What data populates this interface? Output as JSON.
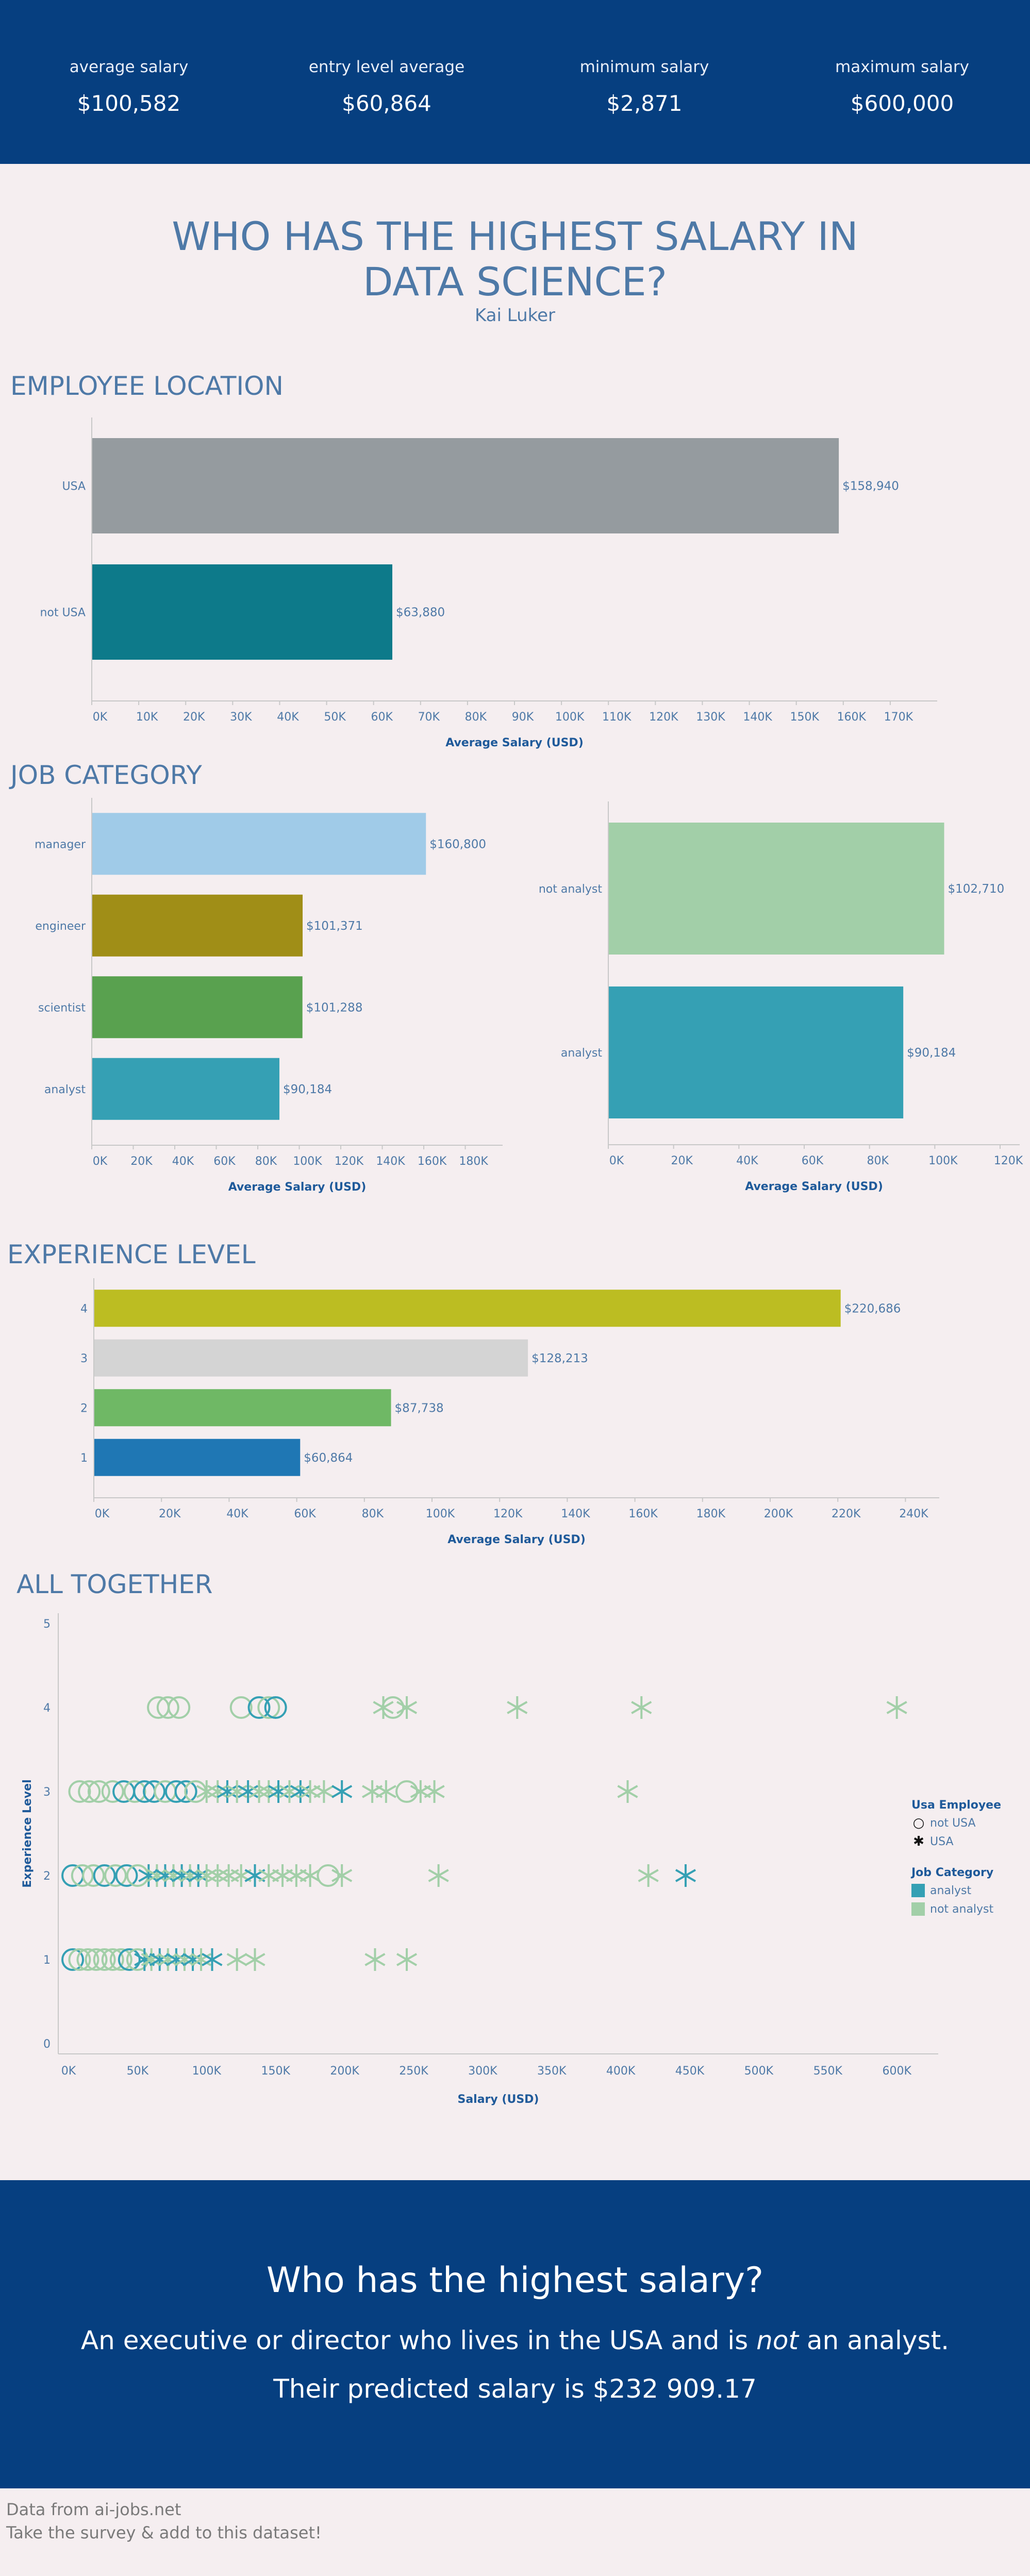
{
  "kpis": [
    {
      "label": "average salary",
      "value": "$100,582"
    },
    {
      "label": "entry level average",
      "value": "$60,864"
    },
    {
      "label": "minimum salary",
      "value": "$2,871"
    },
    {
      "label": "maximum salary",
      "value": "$600,000"
    }
  ],
  "title_line1": "WHO HAS THE HIGHEST SALARY IN",
  "title_line2": "DATA SCIENCE?",
  "author": "Kai Luker",
  "sections": {
    "location": "EMPLOYEE LOCATION",
    "job": "JOB CATEGORY",
    "experience": "EXPERIENCE LEVEL",
    "all": "ALL TOGETHER"
  },
  "colors": {
    "band": "#063f80",
    "background": "#f5eef0",
    "title": "#4e79a7",
    "analyst": "#35a0b4",
    "not_analyst": "#a2cfa8"
  },
  "chart_data": [
    {
      "type": "bar",
      "orientation": "horizontal",
      "categories": [
        "USA",
        "not USA"
      ],
      "values": [
        158940,
        63880
      ],
      "labels": [
        "$158,940",
        "$63,880"
      ],
      "colors": [
        "#959b9f",
        "#0d7a8a"
      ],
      "xlabel": "Average Salary (USD)",
      "xticks": [
        "0K",
        "10K",
        "20K",
        "30K",
        "40K",
        "50K",
        "60K",
        "70K",
        "80K",
        "90K",
        "100K",
        "110K",
        "120K",
        "130K",
        "140K",
        "150K",
        "160K",
        "170K"
      ],
      "xlim": [
        0,
        180000
      ]
    },
    {
      "type": "bar",
      "orientation": "horizontal",
      "categories": [
        "manager",
        "engineer",
        "scientist",
        "analyst"
      ],
      "values": [
        160800,
        101371,
        101288,
        90184
      ],
      "labels": [
        "$160,800",
        "$101,371",
        "$101,288",
        "$90,184"
      ],
      "colors": [
        "#a0cbe8",
        "#a08e17",
        "#59a14f",
        "#35a0b4"
      ],
      "xlabel": "Average Salary (USD)",
      "xticks": [
        "0K",
        "20K",
        "40K",
        "60K",
        "80K",
        "100K",
        "120K",
        "140K",
        "160K",
        "180K"
      ],
      "xlim": [
        0,
        198000
      ]
    },
    {
      "type": "bar",
      "orientation": "horizontal",
      "categories": [
        "not analyst",
        "analyst"
      ],
      "values": [
        102710,
        90184
      ],
      "labels": [
        "$102,710",
        "$90,184"
      ],
      "colors": [
        "#a2cfa8",
        "#35a0b4"
      ],
      "xlabel": "Average Salary (USD)",
      "xticks": [
        "0K",
        "20K",
        "40K",
        "60K",
        "80K",
        "100K",
        "120K"
      ],
      "xlim": [
        0,
        126000
      ]
    },
    {
      "type": "bar",
      "orientation": "horizontal",
      "categories": [
        "4",
        "3",
        "2",
        "1"
      ],
      "values": [
        220686,
        128213,
        87738,
        60864
      ],
      "labels": [
        "$220,686",
        "$128,213",
        "$87,738",
        "$60,864"
      ],
      "colors": [
        "#bcbd22",
        "#d4d4d4",
        "#6fb865",
        "#1f77b4"
      ],
      "xlabel": "Average Salary (USD)",
      "xticks": [
        "0K",
        "20K",
        "40K",
        "60K",
        "80K",
        "100K",
        "120K",
        "140K",
        "160K",
        "180K",
        "200K",
        "220K",
        "240K"
      ],
      "xlim": [
        0,
        250000
      ]
    },
    {
      "type": "scatter",
      "xlabel": "Salary (USD)",
      "ylabel": "Experience Level",
      "xlim": [
        0,
        630000
      ],
      "ylim": [
        0,
        5
      ],
      "xticks": [
        "0K",
        "50K",
        "100K",
        "150K",
        "200K",
        "250K",
        "300K",
        "350K",
        "400K",
        "450K",
        "500K",
        "550K",
        "600K"
      ],
      "yticks": [
        "0",
        "1",
        "2",
        "3",
        "4",
        "5"
      ],
      "legend": {
        "shape_title": "Usa Employee",
        "shapes": [
          {
            "name": "not USA",
            "marker": "circle"
          },
          {
            "name": "USA",
            "marker": "asterisk"
          }
        ],
        "color_title": "Job Category",
        "colors": [
          {
            "name": "analyst",
            "color": "#35a0b4"
          },
          {
            "name": "not analyst",
            "color": "#a2cfa8"
          }
        ]
      },
      "points": [
        {
          "x": 65000,
          "y": 4,
          "shape": "circle",
          "cat": "not analyst"
        },
        {
          "x": 72000,
          "y": 4,
          "shape": "circle",
          "cat": "not analyst"
        },
        {
          "x": 80000,
          "y": 4,
          "shape": "circle",
          "cat": "not analyst"
        },
        {
          "x": 125000,
          "y": 4,
          "shape": "circle",
          "cat": "not analyst"
        },
        {
          "x": 138000,
          "y": 4,
          "shape": "circle",
          "cat": "analyst"
        },
        {
          "x": 145000,
          "y": 4,
          "shape": "circle",
          "cat": "not analyst"
        },
        {
          "x": 150000,
          "y": 4,
          "shape": "circle",
          "cat": "analyst"
        },
        {
          "x": 228000,
          "y": 4,
          "shape": "asterisk",
          "cat": "not analyst"
        },
        {
          "x": 235000,
          "y": 4,
          "shape": "circle",
          "cat": "not analyst"
        },
        {
          "x": 245000,
          "y": 4,
          "shape": "asterisk",
          "cat": "not analyst"
        },
        {
          "x": 325000,
          "y": 4,
          "shape": "asterisk",
          "cat": "not analyst"
        },
        {
          "x": 415000,
          "y": 4,
          "shape": "asterisk",
          "cat": "not analyst"
        },
        {
          "x": 600000,
          "y": 4,
          "shape": "asterisk",
          "cat": "not analyst"
        },
        {
          "x": 8000,
          "y": 3,
          "shape": "circle",
          "cat": "not analyst"
        },
        {
          "x": 15000,
          "y": 3,
          "shape": "circle",
          "cat": "not analyst"
        },
        {
          "x": 22000,
          "y": 3,
          "shape": "circle",
          "cat": "not analyst"
        },
        {
          "x": 32000,
          "y": 3,
          "shape": "circle",
          "cat": "not analyst"
        },
        {
          "x": 40000,
          "y": 3,
          "shape": "circle",
          "cat": "analyst"
        },
        {
          "x": 48000,
          "y": 3,
          "shape": "circle",
          "cat": "not analyst"
        },
        {
          "x": 55000,
          "y": 3,
          "shape": "circle",
          "cat": "analyst"
        },
        {
          "x": 62000,
          "y": 3,
          "shape": "circle",
          "cat": "analyst"
        },
        {
          "x": 70000,
          "y": 3,
          "shape": "circle",
          "cat": "not analyst"
        },
        {
          "x": 78000,
          "y": 3,
          "shape": "circle",
          "cat": "analyst"
        },
        {
          "x": 85000,
          "y": 3,
          "shape": "circle",
          "cat": "analyst"
        },
        {
          "x": 92000,
          "y": 3,
          "shape": "circle",
          "cat": "not analyst"
        },
        {
          "x": 100000,
          "y": 3,
          "shape": "asterisk",
          "cat": "not analyst"
        },
        {
          "x": 108000,
          "y": 3,
          "shape": "asterisk",
          "cat": "not analyst"
        },
        {
          "x": 115000,
          "y": 3,
          "shape": "asterisk",
          "cat": "analyst"
        },
        {
          "x": 122000,
          "y": 3,
          "shape": "asterisk",
          "cat": "not analyst"
        },
        {
          "x": 130000,
          "y": 3,
          "shape": "asterisk",
          "cat": "analyst"
        },
        {
          "x": 138000,
          "y": 3,
          "shape": "asterisk",
          "cat": "not analyst"
        },
        {
          "x": 145000,
          "y": 3,
          "shape": "asterisk",
          "cat": "not analyst"
        },
        {
          "x": 152000,
          "y": 3,
          "shape": "asterisk",
          "cat": "analyst"
        },
        {
          "x": 160000,
          "y": 3,
          "shape": "asterisk",
          "cat": "not analyst"
        },
        {
          "x": 168000,
          "y": 3,
          "shape": "asterisk",
          "cat": "analyst"
        },
        {
          "x": 175000,
          "y": 3,
          "shape": "asterisk",
          "cat": "not analyst"
        },
        {
          "x": 185000,
          "y": 3,
          "shape": "asterisk",
          "cat": "not analyst"
        },
        {
          "x": 198000,
          "y": 3,
          "shape": "asterisk",
          "cat": "analyst"
        },
        {
          "x": 220000,
          "y": 3,
          "shape": "asterisk",
          "cat": "not analyst"
        },
        {
          "x": 230000,
          "y": 3,
          "shape": "asterisk",
          "cat": "not analyst"
        },
        {
          "x": 245000,
          "y": 3,
          "shape": "circle",
          "cat": "not analyst"
        },
        {
          "x": 255000,
          "y": 3,
          "shape": "asterisk",
          "cat": "not analyst"
        },
        {
          "x": 265000,
          "y": 3,
          "shape": "asterisk",
          "cat": "not analyst"
        },
        {
          "x": 405000,
          "y": 3,
          "shape": "asterisk",
          "cat": "not analyst"
        },
        {
          "x": 3000,
          "y": 2,
          "shape": "circle",
          "cat": "analyst"
        },
        {
          "x": 10000,
          "y": 2,
          "shape": "circle",
          "cat": "not analyst"
        },
        {
          "x": 18000,
          "y": 2,
          "shape": "circle",
          "cat": "not analyst"
        },
        {
          "x": 26000,
          "y": 2,
          "shape": "circle",
          "cat": "analyst"
        },
        {
          "x": 34000,
          "y": 2,
          "shape": "circle",
          "cat": "not analyst"
        },
        {
          "x": 42000,
          "y": 2,
          "shape": "circle",
          "cat": "analyst"
        },
        {
          "x": 50000,
          "y": 2,
          "shape": "circle",
          "cat": "not analyst"
        },
        {
          "x": 58000,
          "y": 2,
          "shape": "asterisk",
          "cat": "analyst"
        },
        {
          "x": 64000,
          "y": 2,
          "shape": "asterisk",
          "cat": "not analyst"
        },
        {
          "x": 70000,
          "y": 2,
          "shape": "asterisk",
          "cat": "analyst"
        },
        {
          "x": 76000,
          "y": 2,
          "shape": "asterisk",
          "cat": "not analyst"
        },
        {
          "x": 82000,
          "y": 2,
          "shape": "asterisk",
          "cat": "analyst"
        },
        {
          "x": 88000,
          "y": 2,
          "shape": "asterisk",
          "cat": "not analyst"
        },
        {
          "x": 94000,
          "y": 2,
          "shape": "asterisk",
          "cat": "analyst"
        },
        {
          "x": 100000,
          "y": 2,
          "shape": "asterisk",
          "cat": "not analyst"
        },
        {
          "x": 108000,
          "y": 2,
          "shape": "asterisk",
          "cat": "not analyst"
        },
        {
          "x": 116000,
          "y": 2,
          "shape": "asterisk",
          "cat": "not analyst"
        },
        {
          "x": 125000,
          "y": 2,
          "shape": "asterisk",
          "cat": "not analyst"
        },
        {
          "x": 135000,
          "y": 2,
          "shape": "asterisk",
          "cat": "analyst"
        },
        {
          "x": 145000,
          "y": 2,
          "shape": "asterisk",
          "cat": "not analyst"
        },
        {
          "x": 155000,
          "y": 2,
          "shape": "asterisk",
          "cat": "not analyst"
        },
        {
          "x": 165000,
          "y": 2,
          "shape": "asterisk",
          "cat": "not analyst"
        },
        {
          "x": 175000,
          "y": 2,
          "shape": "asterisk",
          "cat": "not analyst"
        },
        {
          "x": 188000,
          "y": 2,
          "shape": "circle",
          "cat": "not analyst"
        },
        {
          "x": 198000,
          "y": 2,
          "shape": "asterisk",
          "cat": "not analyst"
        },
        {
          "x": 268000,
          "y": 2,
          "shape": "asterisk",
          "cat": "not analyst"
        },
        {
          "x": 420000,
          "y": 2,
          "shape": "asterisk",
          "cat": "not analyst"
        },
        {
          "x": 447000,
          "y": 2,
          "shape": "asterisk",
          "cat": "analyst"
        },
        {
          "x": 3000,
          "y": 1,
          "shape": "circle",
          "cat": "analyst"
        },
        {
          "x": 8000,
          "y": 1,
          "shape": "circle",
          "cat": "not analyst"
        },
        {
          "x": 14000,
          "y": 1,
          "shape": "circle",
          "cat": "not analyst"
        },
        {
          "x": 20000,
          "y": 1,
          "shape": "circle",
          "cat": "not analyst"
        },
        {
          "x": 26000,
          "y": 1,
          "shape": "circle",
          "cat": "not analyst"
        },
        {
          "x": 32000,
          "y": 1,
          "shape": "circle",
          "cat": "not analyst"
        },
        {
          "x": 38000,
          "y": 1,
          "shape": "circle",
          "cat": "not analyst"
        },
        {
          "x": 44000,
          "y": 1,
          "shape": "circle",
          "cat": "analyst"
        },
        {
          "x": 50000,
          "y": 1,
          "shape": "circle",
          "cat": "not analyst"
        },
        {
          "x": 55000,
          "y": 1,
          "shape": "asterisk",
          "cat": "analyst"
        },
        {
          "x": 60000,
          "y": 1,
          "shape": "asterisk",
          "cat": "not analyst"
        },
        {
          "x": 66000,
          "y": 1,
          "shape": "asterisk",
          "cat": "analyst"
        },
        {
          "x": 72000,
          "y": 1,
          "shape": "asterisk",
          "cat": "not analyst"
        },
        {
          "x": 78000,
          "y": 1,
          "shape": "asterisk",
          "cat": "analyst"
        },
        {
          "x": 84000,
          "y": 1,
          "shape": "asterisk",
          "cat": "not analyst"
        },
        {
          "x": 90000,
          "y": 1,
          "shape": "asterisk",
          "cat": "analyst"
        },
        {
          "x": 96000,
          "y": 1,
          "shape": "asterisk",
          "cat": "not analyst"
        },
        {
          "x": 104000,
          "y": 1,
          "shape": "asterisk",
          "cat": "analyst"
        },
        {
          "x": 122000,
          "y": 1,
          "shape": "asterisk",
          "cat": "not analyst"
        },
        {
          "x": 135000,
          "y": 1,
          "shape": "asterisk",
          "cat": "not analyst"
        },
        {
          "x": 222000,
          "y": 1,
          "shape": "asterisk",
          "cat": "not analyst"
        },
        {
          "x": 245000,
          "y": 1,
          "shape": "asterisk",
          "cat": "not analyst"
        }
      ]
    }
  ],
  "footer": {
    "question": "Who has the highest salary?",
    "answer_before": "An executive or director who lives in the USA and is ",
    "answer_emphasis": "not",
    "answer_after": " an analyst.",
    "prediction": "Their predicted salary is $232 909.17"
  },
  "source": {
    "line1": "Data from ai-jobs.net",
    "line2": "Take the survey & add to this dataset!"
  }
}
